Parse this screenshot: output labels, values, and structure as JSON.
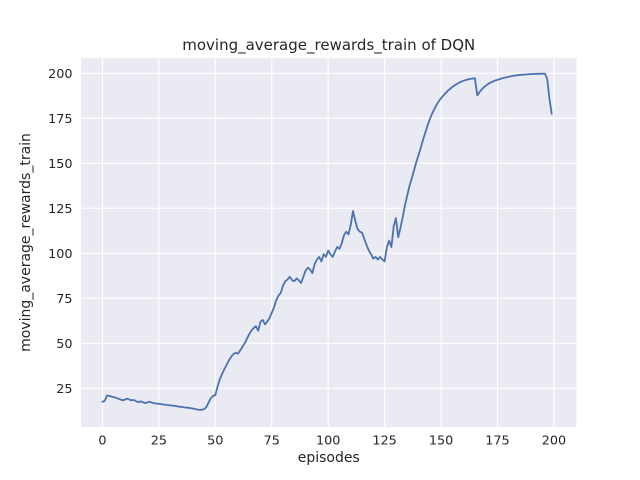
{
  "chart_data": {
    "type": "line",
    "title": "moving_average_rewards_train of DQN",
    "xlabel": "episodes",
    "ylabel": "moving_average_rewards_train",
    "x_ticks": [
      0,
      25,
      50,
      75,
      100,
      125,
      150,
      175,
      200
    ],
    "y_ticks": [
      25,
      50,
      75,
      100,
      125,
      150,
      175,
      200
    ],
    "xlim": [
      -9.5,
      210
    ],
    "ylim": [
      3.5,
      208.5
    ],
    "grid": true,
    "legend": null,
    "style": {
      "figure_bg": "#ffffff",
      "plot_bg": "#eaeaf2",
      "grid_color": "#ffffff",
      "line_color": "#4c72b0",
      "text_color": "#262626",
      "line_width": 1.8
    },
    "series": [
      {
        "name": "moving_average_rewards_train",
        "x": [
          0,
          1,
          2,
          3,
          4,
          5,
          6,
          7,
          8,
          9,
          10,
          11,
          12,
          13,
          14,
          15,
          16,
          17,
          18,
          19,
          20,
          21,
          22,
          23,
          24,
          25,
          26,
          27,
          28,
          29,
          30,
          31,
          32,
          33,
          34,
          35,
          36,
          37,
          38,
          39,
          40,
          41,
          42,
          43,
          44,
          45,
          46,
          47,
          48,
          49,
          50,
          51,
          52,
          53,
          54,
          55,
          56,
          57,
          58,
          59,
          60,
          61,
          62,
          63,
          64,
          65,
          66,
          67,
          68,
          69,
          70,
          71,
          72,
          73,
          74,
          75,
          76,
          77,
          78,
          79,
          80,
          81,
          82,
          83,
          84,
          85,
          86,
          87,
          88,
          89,
          90,
          91,
          92,
          93,
          94,
          95,
          96,
          97,
          98,
          99,
          100,
          101,
          102,
          103,
          104,
          105,
          106,
          107,
          108,
          109,
          110,
          111,
          112,
          113,
          114,
          115,
          116,
          117,
          118,
          119,
          120,
          121,
          122,
          123,
          124,
          125,
          126,
          127,
          128,
          129,
          130,
          131,
          132,
          133,
          134,
          135,
          136,
          137,
          138,
          139,
          140,
          141,
          142,
          143,
          144,
          145,
          146,
          147,
          148,
          149,
          150,
          151,
          152,
          153,
          154,
          155,
          156,
          157,
          158,
          159,
          160,
          161,
          162,
          163,
          164,
          165,
          166,
          167,
          168,
          169,
          170,
          171,
          172,
          173,
          174,
          175,
          176,
          177,
          178,
          179,
          180,
          181,
          182,
          183,
          184,
          185,
          186,
          187,
          188,
          189,
          190,
          191,
          192,
          193,
          194,
          195,
          196,
          197,
          198,
          199
        ],
        "y": [
          17.5,
          18.0,
          21.0,
          20.8,
          20.4,
          20.1,
          19.7,
          19.2,
          18.7,
          18.4,
          18.7,
          19.3,
          18.7,
          18.3,
          18.5,
          17.7,
          17.3,
          17.8,
          17.2,
          16.8,
          17.2,
          17.5,
          17.0,
          16.7,
          16.5,
          16.4,
          16.2,
          16.0,
          15.8,
          15.7,
          15.5,
          15.4,
          15.2,
          15.0,
          14.8,
          14.7,
          14.5,
          14.3,
          14.2,
          14.0,
          13.8,
          13.5,
          13.2,
          13.0,
          13.1,
          13.4,
          14.5,
          17.0,
          19.5,
          20.8,
          21.2,
          26.0,
          30.0,
          33.0,
          35.5,
          38.0,
          40.5,
          42.5,
          44.0,
          44.8,
          44.2,
          46.0,
          48.0,
          50.0,
          52.5,
          55.0,
          57.0,
          58.5,
          59.5,
          57.0,
          62.0,
          63.0,
          60.5,
          62.0,
          64.0,
          67.0,
          70.0,
          74.0,
          76.5,
          78.0,
          82.0,
          84.5,
          85.5,
          87.0,
          85.0,
          84.5,
          86.0,
          85.0,
          83.5,
          87.0,
          90.5,
          92.0,
          91.0,
          89.0,
          94.0,
          96.5,
          98.0,
          95.5,
          99.5,
          98.0,
          101.5,
          99.5,
          98.0,
          101.0,
          103.5,
          102.5,
          105.5,
          110.0,
          112.0,
          110.5,
          116.0,
          123.5,
          118.0,
          113.5,
          112.0,
          111.5,
          108.0,
          104.5,
          101.5,
          99.5,
          97.0,
          98.0,
          96.5,
          98.0,
          96.5,
          95.5,
          103.5,
          107.0,
          103.5,
          115.0,
          119.5,
          109.0,
          114.0,
          120.0,
          126.5,
          132.0,
          137.5,
          141.5,
          146.0,
          150.5,
          154.5,
          158.5,
          163.0,
          167.0,
          171.0,
          174.5,
          177.5,
          180.0,
          182.5,
          184.5,
          186.2,
          187.6,
          189.0,
          190.3,
          191.4,
          192.4,
          193.3,
          194.1,
          194.8,
          195.4,
          195.9,
          196.3,
          196.6,
          196.9,
          197.1,
          197.2,
          187.8,
          189.5,
          191.0,
          192.3,
          193.3,
          194.2,
          194.9,
          195.5,
          196.0,
          196.4,
          196.8,
          197.2,
          197.5,
          197.8,
          198.1,
          198.4,
          198.6,
          198.8,
          199.0,
          199.1,
          199.2,
          199.3,
          199.4,
          199.5,
          199.6,
          199.6,
          199.7,
          199.7,
          199.7,
          199.8,
          199.8,
          197.0,
          186.0,
          177.5
        ]
      }
    ]
  }
}
